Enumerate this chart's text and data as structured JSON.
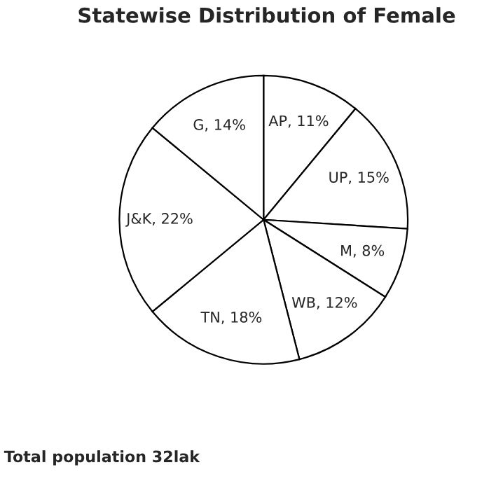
{
  "chart_data": {
    "type": "pie",
    "title": "Statewise Distribution of Female",
    "categories": [
      "AP",
      "UP",
      "M",
      "WB",
      "TN",
      "J&K",
      "G"
    ],
    "values": [
      11,
      15,
      8,
      12,
      18,
      22,
      14
    ],
    "value_labels": [
      "11%",
      "15%",
      "8%",
      "12%",
      "18%",
      "22%",
      "14%"
    ],
    "colors": [
      "#ffffff",
      "#ffffff",
      "#ffffff",
      "#ffffff",
      "#ffffff",
      "#ffffff",
      "#ffffff"
    ],
    "annotations": [
      "Total population 32lak"
    ],
    "legend": false
  }
}
